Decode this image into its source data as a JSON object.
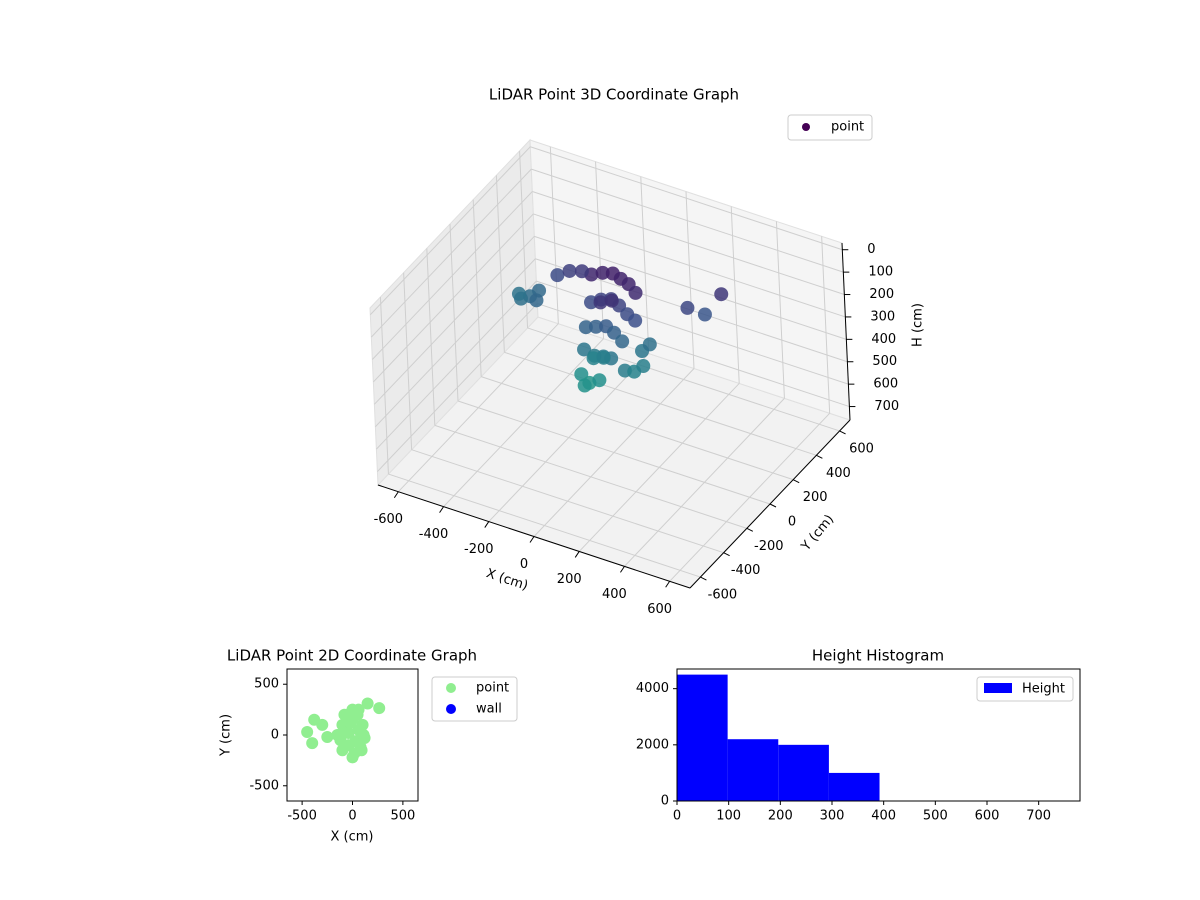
{
  "chart_data": [
    {
      "type": "scatter3d",
      "title": "LiDAR Point 3D Coordinate Graph",
      "x_label": "X (cm)",
      "y_label": "Y (cm)",
      "z_label": "H (cm)",
      "xlim": [
        -690,
        690
      ],
      "ylim": [
        -690,
        690
      ],
      "zlim": [
        760,
        -30
      ],
      "xticks": [
        -600,
        -400,
        -200,
        0,
        200,
        400,
        600
      ],
      "yticks": [
        -600,
        -400,
        -200,
        0,
        200,
        400,
        600
      ],
      "zticks": [
        0,
        100,
        200,
        300,
        400,
        500,
        600,
        700
      ],
      "colormap": "viridis",
      "legend": "upper right",
      "grid": true,
      "series": [
        {
          "name": "point",
          "color": "#440154",
          "x": [
            -120,
            -80,
            -40,
            0,
            40,
            80,
            -100,
            -60,
            -20,
            20,
            60,
            100,
            -90,
            -50,
            -10,
            30,
            70,
            -70,
            -30,
            10,
            50,
            -60,
            -20,
            20,
            -40,
            0,
            -30,
            10,
            120,
            140,
            160,
            130,
            150,
            -400,
            -430,
            -380,
            -460,
            -350,
            -300,
            -250,
            -200,
            250,
            300,
            350,
            -20
          ],
          "y": [
            100,
            120,
            130,
            120,
            110,
            90,
            50,
            60,
            70,
            60,
            50,
            40,
            -20,
            -10,
            0,
            -10,
            -20,
            -80,
            -70,
            -70,
            -80,
            -130,
            -140,
            -130,
            -60,
            -50,
            0,
            20,
            -100,
            -60,
            -20,
            30,
            60,
            100,
            80,
            140,
            120,
            60,
            150,
            160,
            170,
            200,
            250,
            300,
            -180
          ],
          "h": [
            60,
            50,
            45,
            50,
            55,
            70,
            150,
            130,
            120,
            130,
            150,
            160,
            220,
            210,
            200,
            210,
            230,
            280,
            300,
            290,
            280,
            360,
            380,
            360,
            320,
            310,
            100,
            90,
            300,
            320,
            310,
            280,
            260,
            250,
            260,
            240,
            270,
            230,
            150,
            120,
            110,
            140,
            180,
            100,
            370
          ]
        }
      ]
    },
    {
      "type": "scatter",
      "title": "LiDAR Point 2D Coordinate Graph",
      "x_label": "X (cm)",
      "y_label": "Y (cm)",
      "xlim": [
        -650,
        650
      ],
      "ylim": [
        -650,
        650
      ],
      "xticks": [
        -500,
        0,
        500
      ],
      "yticks": [
        -500,
        0,
        500
      ],
      "legend": "outside upper right",
      "series": [
        {
          "name": "point",
          "color": "#90ee90",
          "x": [
            -150,
            -100,
            -50,
            0,
            50,
            100,
            -120,
            -60,
            0,
            60,
            120,
            -100,
            -40,
            20,
            80,
            -80,
            0,
            60,
            -40,
            30,
            -20,
            -450,
            -400,
            -380,
            -300,
            -250,
            150,
            265,
            110,
            90
          ],
          "y": [
            0,
            100,
            200,
            250,
            200,
            100,
            -50,
            50,
            150,
            50,
            -30,
            -150,
            -100,
            -180,
            -120,
            200,
            -220,
            250,
            20,
            -60,
            120,
            30,
            -80,
            150,
            100,
            -20,
            310,
            265,
            0,
            -150
          ]
        },
        {
          "name": "wall",
          "color": "#0000ff",
          "x": [],
          "y": []
        }
      ]
    },
    {
      "type": "histogram",
      "title": "Height Histogram",
      "bins": [
        0,
        98,
        196,
        294,
        392,
        490,
        588,
        686,
        784
      ],
      "values": [
        4500,
        2200,
        2000,
        1000,
        0,
        0,
        0,
        0
      ],
      "xlim": [
        0,
        780
      ],
      "ylim": [
        0,
        4700
      ],
      "xticks": [
        0,
        100,
        200,
        300,
        400,
        500,
        600,
        700
      ],
      "yticks": [
        0,
        2000,
        4000
      ],
      "legend": "upper right",
      "series": [
        {
          "name": "Height",
          "color": "#0000ff"
        }
      ]
    }
  ]
}
